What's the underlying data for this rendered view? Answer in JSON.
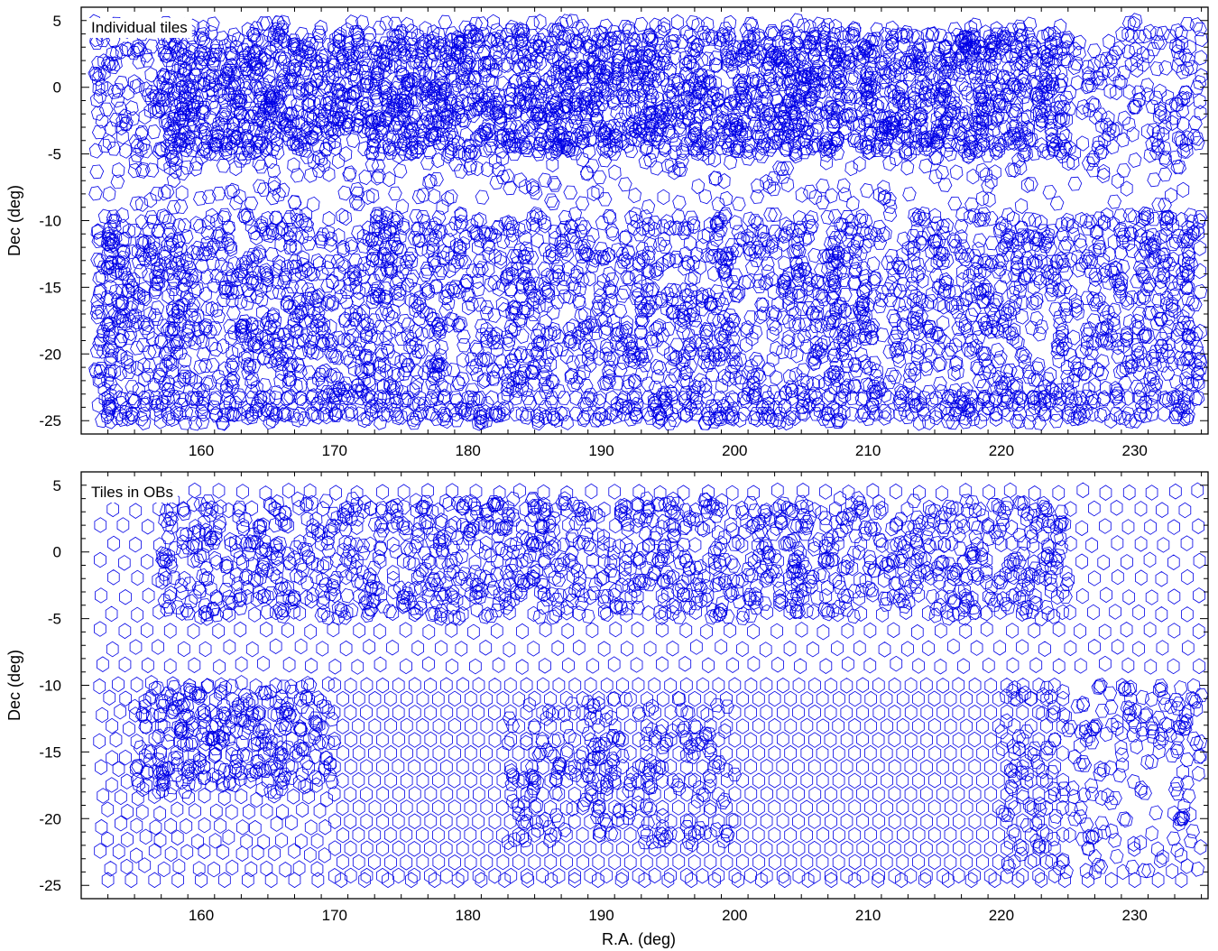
{
  "figure": {
    "xlabel": "R.A.  (deg)"
  },
  "chart_data": [
    {
      "type": "scatter",
      "panel": "top",
      "label": "Individual tiles",
      "ylabel": "Dec  (deg)",
      "xlim": [
        151,
        235.5
      ],
      "ylim": [
        -26,
        6
      ],
      "xticks": [
        160,
        170,
        180,
        190,
        200,
        210,
        220,
        230
      ],
      "yticks": [
        5,
        0,
        -5,
        -10,
        -15,
        -20,
        -25
      ],
      "grid": false,
      "line_color": "#0000e6",
      "marker": "hexagon-outline",
      "tile_size_deg": 1.0,
      "regions": [
        {
          "ra": [
            157,
            225
          ],
          "dec": [
            -5,
            4
          ],
          "density": "very high"
        },
        {
          "ra": [
            152,
            235
          ],
          "dec": [
            -5,
            5
          ],
          "density": "high"
        },
        {
          "ra": [
            152,
            235
          ],
          "dec": [
            -9,
            -5
          ],
          "density": "low"
        },
        {
          "ra": [
            152,
            235
          ],
          "dec": [
            -25,
            -9
          ],
          "density": "very high"
        }
      ]
    },
    {
      "type": "scatter",
      "panel": "bottom",
      "label": "Tiles in OBs",
      "ylabel": "Dec  (deg)",
      "xlim": [
        151,
        235.5
      ],
      "ylim": [
        -26,
        6
      ],
      "xticks": [
        160,
        170,
        180,
        190,
        200,
        210,
        220,
        230
      ],
      "yticks": [
        5,
        0,
        -5,
        -10,
        -15,
        -20,
        -25
      ],
      "grid": false,
      "line_color": "#0000e6",
      "marker": "hexagon-outline",
      "tile_size_deg": 1.0,
      "regions": [
        {
          "ra": [
            157,
            225
          ],
          "dec": [
            -5,
            4
          ],
          "density": "high, irregular"
        },
        {
          "ra": [
            152,
            235
          ],
          "dec": [
            -9,
            -5
          ],
          "density": "single regular tiling"
        },
        {
          "ra": [
            170,
            225
          ],
          "dec": [
            -25,
            -10
          ],
          "density": "regular grid"
        },
        {
          "ra": [
            152,
            170
          ],
          "dec": [
            -25,
            -10
          ],
          "density": "irregular"
        }
      ]
    }
  ]
}
